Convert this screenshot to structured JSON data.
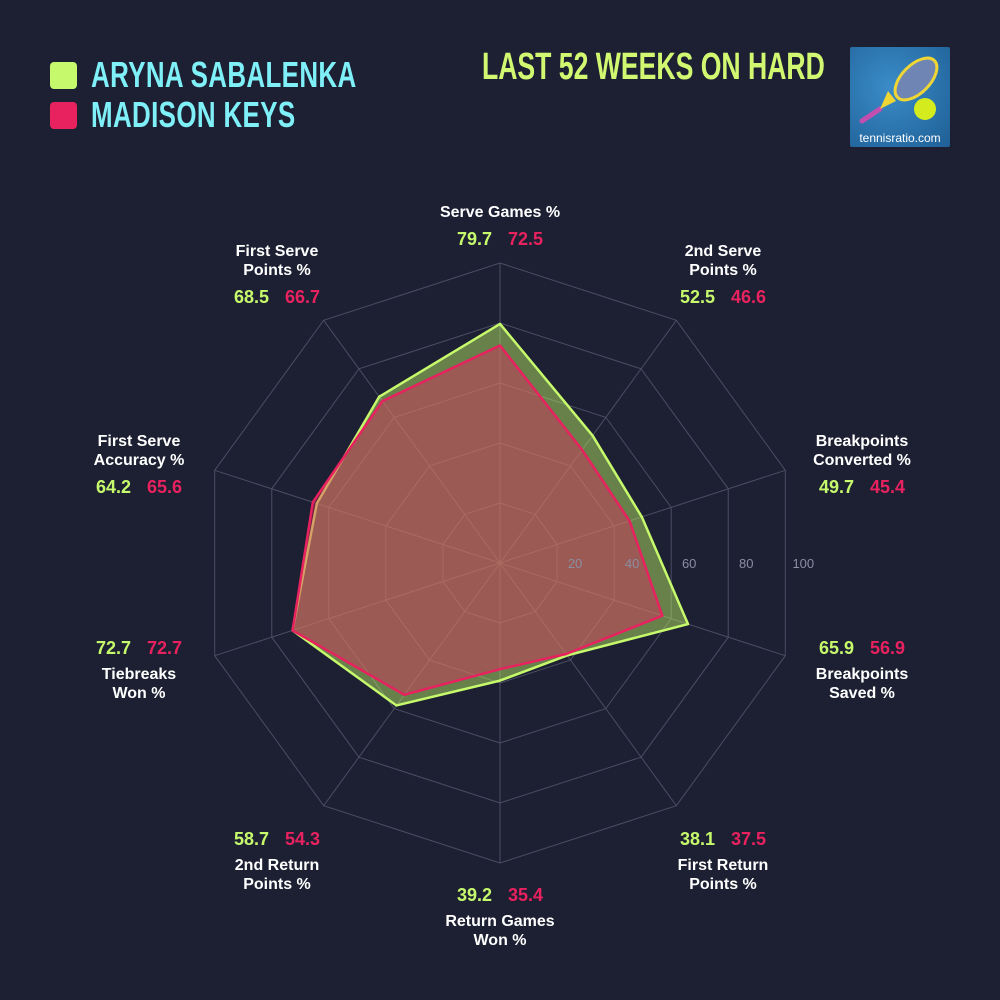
{
  "title": "LAST 52 WEEKS ON HARD",
  "logo": {
    "text": "tennisratio.com"
  },
  "colors": {
    "player1": "#c6f96b",
    "player2": "#e8215f",
    "legend_text": "#7ff0f8",
    "title": "#d2f872",
    "background": "#1d2032"
  },
  "chart_data": {
    "type": "radar",
    "title": "LAST 52 WEEKS ON HARD",
    "categories": [
      "Serve Games %",
      "2nd Serve\nPoints %",
      "Breakpoints\nConverted %",
      "Breakpoints\nSaved %",
      "First Return\nPoints %",
      "Return Games\nWon %",
      "2nd Return\nPoints %",
      "Tiebreaks\nWon %",
      "First Serve\nAccuracy %",
      "First Serve\nPoints %"
    ],
    "range": [
      0,
      100
    ],
    "ticks": [
      "20",
      "40",
      "60",
      "80",
      "100"
    ],
    "legend_placement": "top-left",
    "series": [
      {
        "name": "ARYNA SABALENKA",
        "color": "#c6f96b",
        "values": [
          79.7,
          52.5,
          49.7,
          65.9,
          38.1,
          39.2,
          58.7,
          72.7,
          64.2,
          68.5
        ],
        "labels": [
          "79.7",
          "52.5",
          "49.7",
          "65.9",
          "38.1",
          "39.2",
          "58.7",
          "72.7",
          "64.2",
          "68.5"
        ]
      },
      {
        "name": "MADISON KEYS",
        "color": "#e8215f",
        "values": [
          72.5,
          46.6,
          45.4,
          56.9,
          37.5,
          35.4,
          54.3,
          72.7,
          65.6,
          66.7
        ],
        "labels": [
          "72.5",
          "46.6",
          "45.4",
          "56.9",
          "37.5",
          "35.4",
          "54.3",
          "72.7",
          "65.6",
          "66.7"
        ]
      }
    ]
  }
}
